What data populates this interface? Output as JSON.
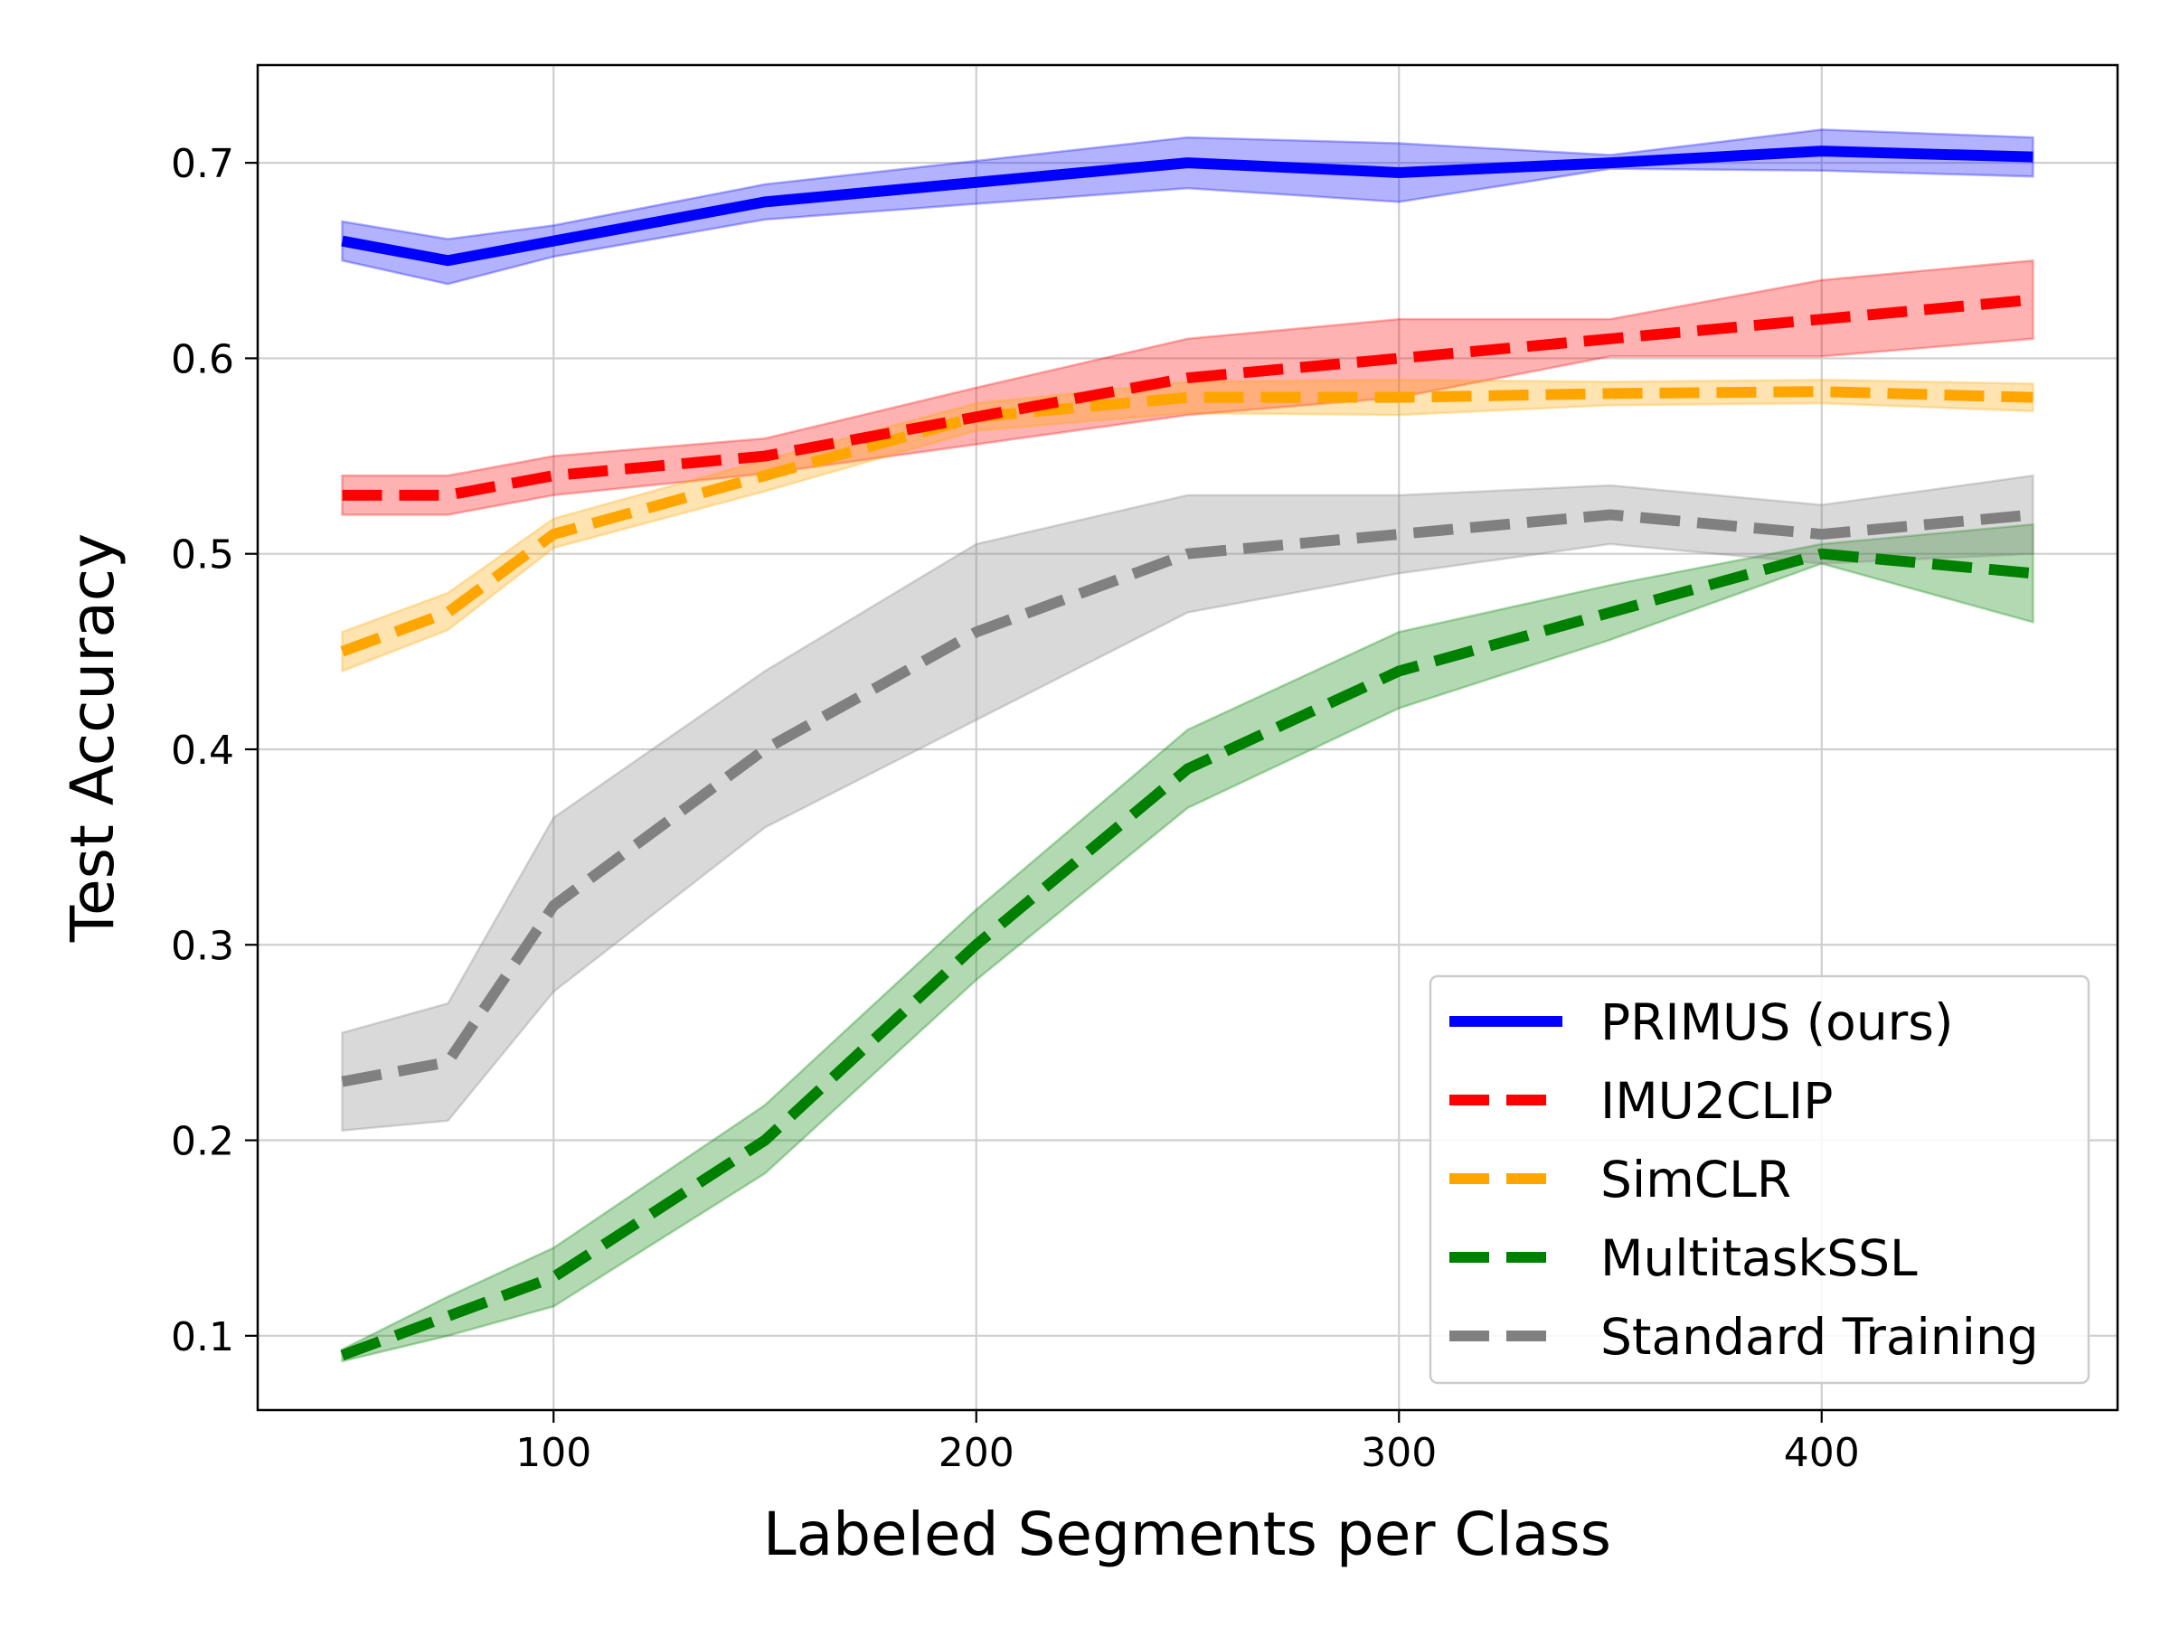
{
  "chart_data": {
    "type": "line",
    "title": "",
    "xlabel": "Labeled Segments per Class",
    "ylabel": "Test Accuracy",
    "xlim": [
      30,
      470
    ],
    "ylim": [
      0.062,
      0.75
    ],
    "xticks": [
      100,
      200,
      300,
      400
    ],
    "yticks": [
      0.1,
      0.2,
      0.3,
      0.4,
      0.5,
      0.6,
      0.7
    ],
    "grid": true,
    "legend_position": "lower-right",
    "x": [
      50,
      75,
      100,
      150,
      200,
      250,
      300,
      350,
      400,
      450
    ],
    "series": [
      {
        "name": "PRIMUS (ours)",
        "color": "#0000ff",
        "style": "solid",
        "values": [
          0.66,
          0.65,
          0.66,
          0.68,
          0.69,
          0.7,
          0.695,
          0.7,
          0.706,
          0.703
        ],
        "lower": [
          0.65,
          0.638,
          0.652,
          0.671,
          0.679,
          0.687,
          0.68,
          0.697,
          0.696,
          0.693
        ],
        "upper": [
          0.67,
          0.661,
          0.668,
          0.689,
          0.701,
          0.713,
          0.71,
          0.704,
          0.717,
          0.713
        ]
      },
      {
        "name": "IMU2CLIP",
        "color": "#ff0000",
        "style": "dashed",
        "values": [
          0.53,
          0.53,
          0.54,
          0.55,
          0.57,
          0.59,
          0.6,
          0.61,
          0.62,
          0.63
        ],
        "lower": [
          0.52,
          0.52,
          0.53,
          0.541,
          0.556,
          0.571,
          0.58,
          0.601,
          0.601,
          0.61
        ],
        "upper": [
          0.54,
          0.54,
          0.55,
          0.559,
          0.585,
          0.61,
          0.62,
          0.62,
          0.64,
          0.65
        ]
      },
      {
        "name": "SimCLR",
        "color": "#ffa500",
        "style": "dashed",
        "values": [
          0.45,
          0.47,
          0.51,
          0.54,
          0.57,
          0.58,
          0.58,
          0.582,
          0.583,
          0.58
        ],
        "lower": [
          0.44,
          0.461,
          0.503,
          0.532,
          0.563,
          0.572,
          0.571,
          0.576,
          0.577,
          0.573
        ],
        "upper": [
          0.46,
          0.48,
          0.518,
          0.548,
          0.577,
          0.588,
          0.589,
          0.588,
          0.589,
          0.587
        ]
      },
      {
        "name": "MultitaskSSL",
        "color": "#008000",
        "style": "dashed",
        "values": [
          0.09,
          0.11,
          0.13,
          0.2,
          0.3,
          0.39,
          0.44,
          0.47,
          0.5,
          0.49
        ],
        "lower": [
          0.087,
          0.1,
          0.115,
          0.183,
          0.282,
          0.37,
          0.421,
          0.456,
          0.495,
          0.465
        ],
        "upper": [
          0.093,
          0.12,
          0.145,
          0.218,
          0.318,
          0.41,
          0.46,
          0.484,
          0.505,
          0.515
        ]
      },
      {
        "name": "Standard Training",
        "color": "#808080",
        "style": "dashed",
        "values": [
          0.23,
          0.24,
          0.32,
          0.4,
          0.46,
          0.5,
          0.51,
          0.52,
          0.51,
          0.52
        ],
        "lower": [
          0.205,
          0.21,
          0.276,
          0.36,
          0.415,
          0.47,
          0.49,
          0.505,
          0.495,
          0.5
        ],
        "upper": [
          0.255,
          0.27,
          0.365,
          0.44,
          0.505,
          0.53,
          0.53,
          0.535,
          0.525,
          0.54
        ]
      }
    ]
  }
}
